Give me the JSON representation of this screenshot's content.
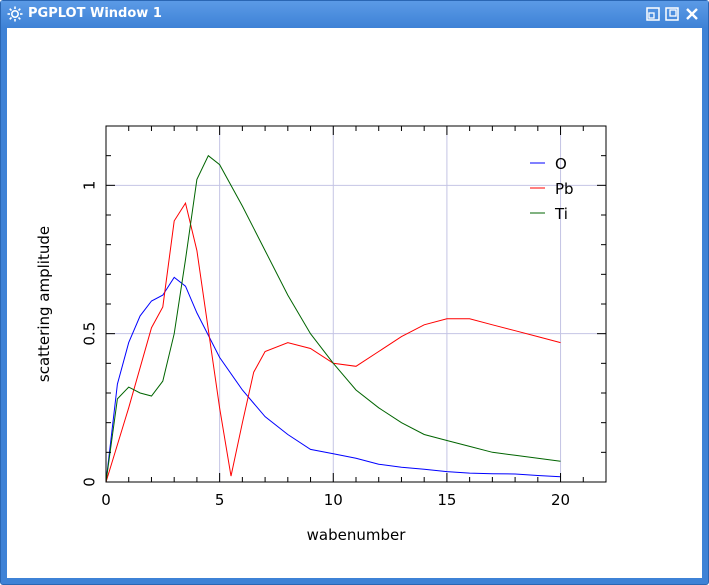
{
  "window": {
    "title": "PGPLOT Window 1",
    "app_icon": "kde-gear-icon",
    "buttons": [
      "restore-icon",
      "maximize-icon",
      "close-icon"
    ]
  },
  "chart_data": {
    "type": "line",
    "xlabel": "wabenumber",
    "ylabel": "scattering amplitude",
    "xlim": [
      0,
      22
    ],
    "ylim": [
      0,
      1.2
    ],
    "x_ticks": [
      0,
      5,
      10,
      15,
      20
    ],
    "x_tick_labels": [
      "0",
      "5",
      "10",
      "15",
      "20"
    ],
    "y_ticks": [
      0,
      0.5,
      1
    ],
    "y_tick_labels": [
      "0",
      "0.5",
      "1"
    ],
    "grid": true,
    "legend": "top-right",
    "series": [
      {
        "name": "O",
        "color": "#0000ff",
        "x": [
          0,
          0.5,
          1,
          1.5,
          2,
          2.5,
          3,
          3.5,
          4,
          5,
          6,
          7,
          8,
          9,
          10,
          11,
          12,
          13,
          14,
          15,
          16,
          17,
          18,
          19,
          20
        ],
        "y": [
          0,
          0.33,
          0.47,
          0.56,
          0.61,
          0.63,
          0.69,
          0.66,
          0.57,
          0.42,
          0.31,
          0.22,
          0.16,
          0.11,
          0.095,
          0.08,
          0.06,
          0.05,
          0.043,
          0.035,
          0.03,
          0.028,
          0.027,
          0.022,
          0.018
        ]
      },
      {
        "name": "Pb",
        "color": "#ff0000",
        "x": [
          0,
          1,
          2,
          2.5,
          3,
          3.5,
          4,
          5,
          5.5,
          6,
          6.5,
          7,
          8,
          9,
          10,
          11,
          12,
          13,
          14,
          15,
          16,
          17,
          18,
          19,
          20
        ],
        "y": [
          0,
          0.25,
          0.52,
          0.59,
          0.88,
          0.94,
          0.78,
          0.25,
          0.02,
          0.2,
          0.37,
          0.44,
          0.47,
          0.45,
          0.4,
          0.39,
          0.44,
          0.49,
          0.53,
          0.55,
          0.55,
          0.53,
          0.51,
          0.49,
          0.47
        ]
      },
      {
        "name": "Ti",
        "color": "#006400",
        "x": [
          0,
          0.5,
          1,
          1.5,
          2,
          2.5,
          3,
          3.5,
          4,
          4.5,
          5,
          6,
          7,
          8,
          9,
          10,
          11,
          12,
          13,
          14,
          15,
          16,
          17,
          18,
          19,
          20
        ],
        "y": [
          0,
          0.28,
          0.32,
          0.3,
          0.29,
          0.34,
          0.5,
          0.75,
          1.02,
          1.1,
          1.07,
          0.93,
          0.78,
          0.63,
          0.5,
          0.4,
          0.31,
          0.25,
          0.2,
          0.16,
          0.14,
          0.12,
          0.1,
          0.09,
          0.08,
          0.07
        ]
      }
    ]
  }
}
